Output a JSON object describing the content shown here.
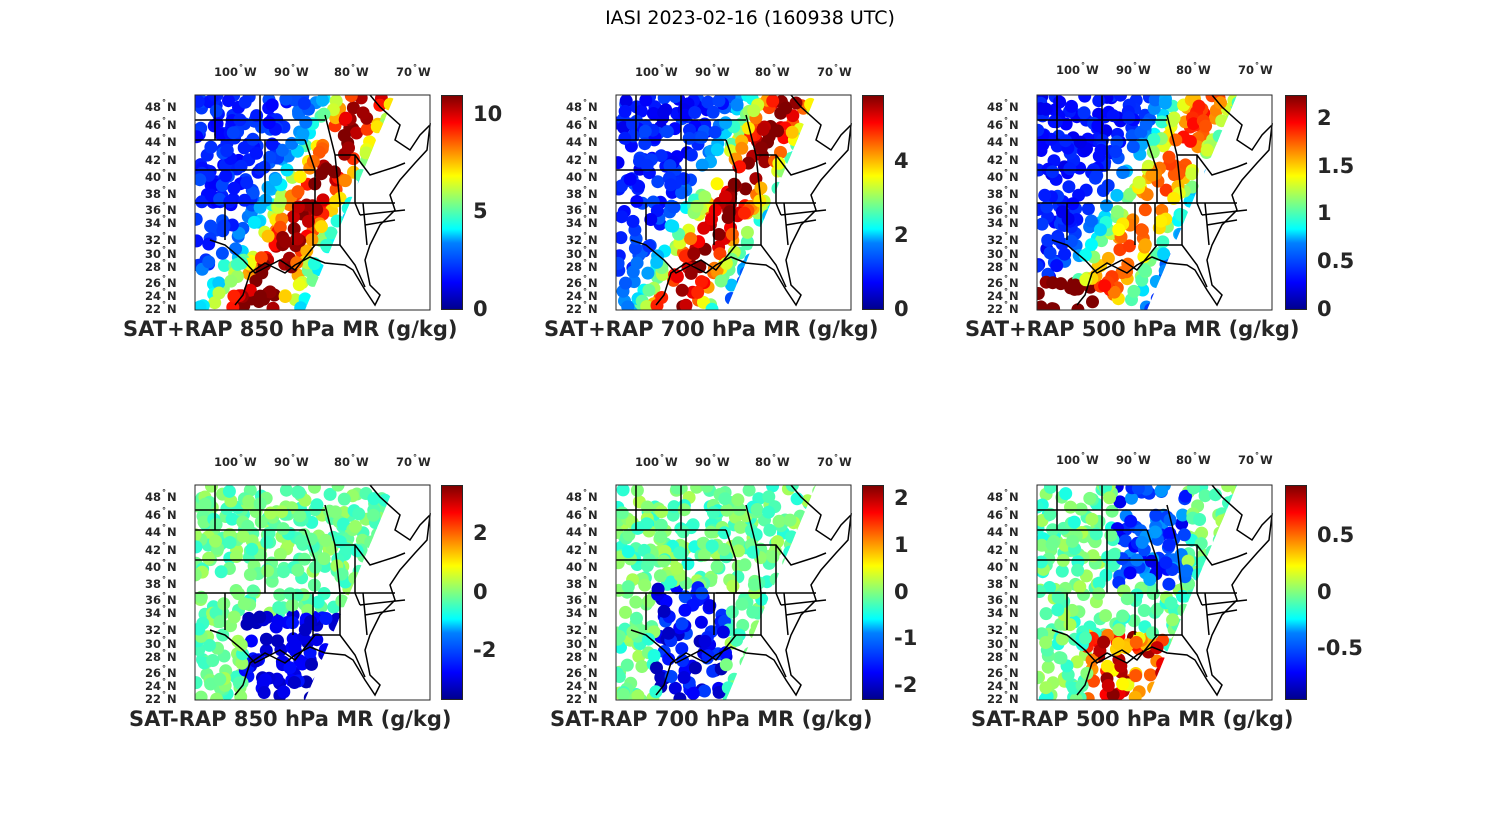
{
  "title": "IASI 2023-02-16 (160938 UTC)",
  "lon_labels": [
    "100",
    "90",
    "80",
    "70"
  ],
  "lon_hemisphere": "W",
  "lat_labels": [
    "48",
    "46",
    "44",
    "42",
    "40",
    "38",
    "36",
    "34",
    "32",
    "30",
    "28",
    "26",
    "24",
    "22"
  ],
  "lat_hemisphere": "N",
  "colormap": "jet",
  "panels": [
    {
      "title": "SAT+RAP 850 hPa MR (g/kg)",
      "ticks": [
        "0",
        "5",
        "10"
      ],
      "tick_values": [
        0,
        5,
        10
      ],
      "range": [
        0,
        11
      ],
      "kind": "total"
    },
    {
      "title": "SAT+RAP 700 hPa MR (g/kg)",
      "ticks": [
        "0",
        "2",
        "4"
      ],
      "tick_values": [
        0,
        2,
        4
      ],
      "range": [
        0,
        5.8
      ],
      "kind": "total"
    },
    {
      "title": "SAT+RAP 500 hPa MR (g/kg)",
      "ticks": [
        "0",
        "0.5",
        "1",
        "1.5",
        "2"
      ],
      "tick_values": [
        0,
        0.5,
        1,
        1.5,
        2
      ],
      "range": [
        0,
        2.25
      ],
      "kind": "total"
    },
    {
      "title": "SAT-RAP 850 hPa MR (g/kg)",
      "ticks": [
        "-2",
        "0",
        "2"
      ],
      "tick_values": [
        -2,
        0,
        2
      ],
      "range": [
        -3.7,
        3.7
      ],
      "kind": "diff"
    },
    {
      "title": "SAT-RAP 700 hPa MR (g/kg)",
      "ticks": [
        "-2",
        "-1",
        "0",
        "1",
        "2"
      ],
      "tick_values": [
        -2,
        -1,
        0,
        1,
        2
      ],
      "range": [
        -2.3,
        2.3
      ],
      "kind": "diff"
    },
    {
      "title": "SAT-RAP 500 hPa MR (g/kg)",
      "ticks": [
        "-0.5",
        "0",
        "0.5"
      ],
      "tick_values": [
        -0.5,
        0,
        0.5
      ],
      "range": [
        -0.95,
        0.95
      ],
      "kind": "diff"
    }
  ]
}
